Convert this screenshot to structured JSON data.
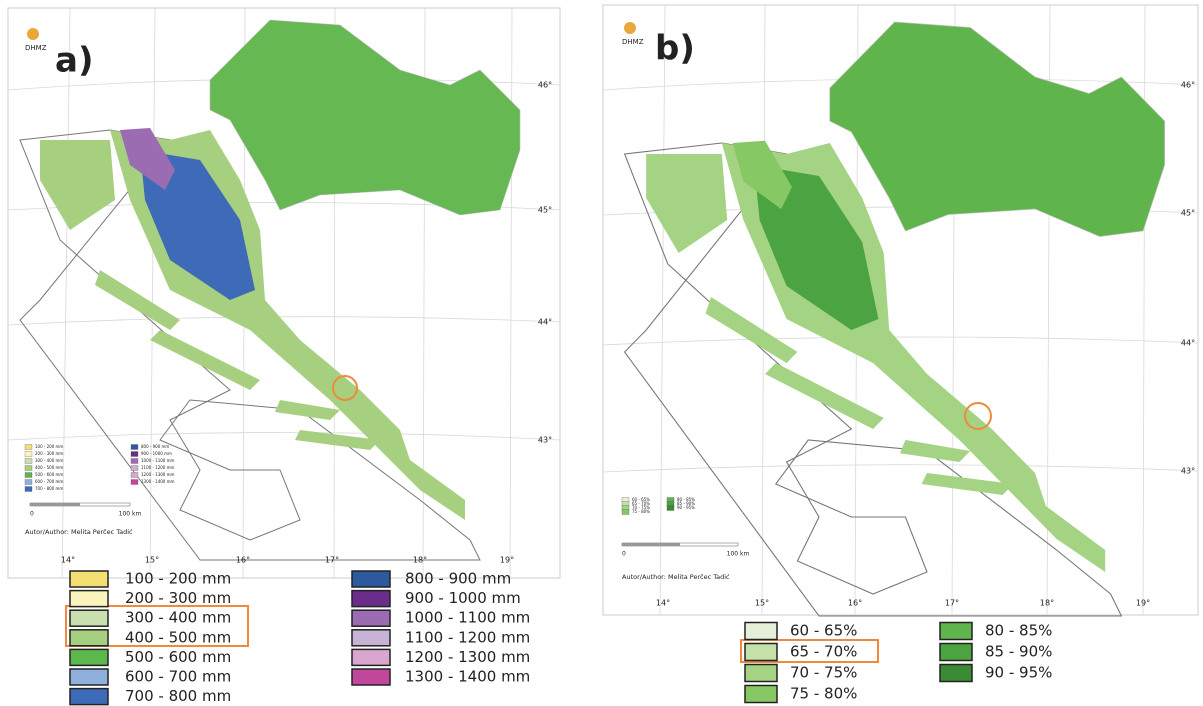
{
  "panels": [
    {
      "label": "a)",
      "logo": "DHMZ",
      "latitudes": [
        "46°",
        "45°",
        "44°",
        "43°"
      ],
      "longitudes": [
        "14°",
        "15°",
        "16°",
        "17°",
        "18°",
        "19°"
      ],
      "scale": [
        "0",
        "100 km"
      ],
      "author": "Autor/Author: Melita Perčec Tadić",
      "legend": [
        {
          "label": "100 - 200 mm",
          "color": "#f3df72"
        },
        {
          "label": "200 - 300 mm",
          "color": "#fbf4bd"
        },
        {
          "label": "300 - 400 mm",
          "color": "#c9dfae"
        },
        {
          "label": "400 - 500 mm",
          "color": "#a6d07f"
        },
        {
          "label": "500 - 600 mm",
          "color": "#5cb74c"
        },
        {
          "label": "600 - 700 mm",
          "color": "#8fb0dd"
        },
        {
          "label": "700 - 800 mm",
          "color": "#3d6bb8"
        },
        {
          "label": "800 - 900 mm",
          "color": "#2c5a9c"
        },
        {
          "label": "900 - 1000 mm",
          "color": "#6a2d8c"
        },
        {
          "label": "1000 - 1100 mm",
          "color": "#9c6cb2"
        },
        {
          "label": "1100 - 1200 mm",
          "color": "#c6b3d6"
        },
        {
          "label": "1200 - 1300 mm",
          "color": "#d8a6cf"
        },
        {
          "label": "1300 - 1400 mm",
          "color": "#c0479c"
        }
      ]
    },
    {
      "label": "b)",
      "logo": "DHMZ",
      "latitudes": [
        "46°",
        "45°",
        "44°",
        "43°"
      ],
      "longitudes": [
        "14°",
        "15°",
        "16°",
        "17°",
        "18°",
        "19°"
      ],
      "scale": [
        "0",
        "100 km"
      ],
      "author": "Autor/Author: Melita Perčec Tadić",
      "legend": [
        {
          "label": "60 - 65%",
          "color": "#e4f0d8"
        },
        {
          "label": "65 - 70%",
          "color": "#c5e0a8"
        },
        {
          "label": "70 - 75%",
          "color": "#a3d383"
        },
        {
          "label": "75 - 80%",
          "color": "#86c863"
        },
        {
          "label": "80 - 85%",
          "color": "#5fb54b"
        },
        {
          "label": "85 - 90%",
          "color": "#4ba341"
        },
        {
          "label": "90 - 95%",
          "color": "#3b8a35"
        }
      ]
    }
  ]
}
